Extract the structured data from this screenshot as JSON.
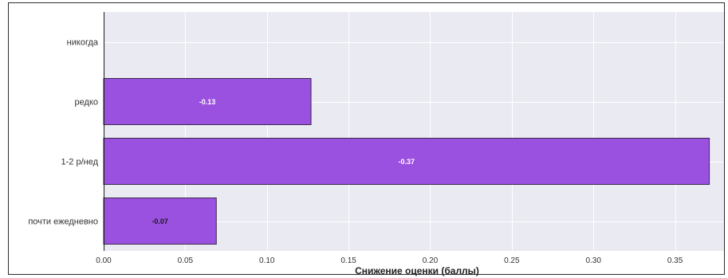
{
  "chart_data": {
    "type": "bar",
    "orientation": "horizontal",
    "categories": [
      "никогда",
      "редко",
      "1-2 р/нед",
      "почти ежедневно"
    ],
    "values": [
      0.0,
      0.127,
      0.371,
      0.069
    ],
    "value_labels": [
      "",
      "-0.13",
      "-0.37",
      "-0.07"
    ],
    "xlabel": "Снижение оценки (баллы)",
    "ylabel": "",
    "xlim": [
      0.0,
      0.38
    ],
    "xticks": [
      0.0,
      0.05,
      0.1,
      0.15,
      0.2,
      0.25,
      0.3,
      0.35
    ],
    "xtick_labels": [
      "0.00",
      "0.05",
      "0.10",
      "0.15",
      "0.20",
      "0.25",
      "0.30",
      "0.35"
    ],
    "grid": true,
    "legend": "none",
    "colors": {
      "bar_fill": "#9b51e0",
      "bar_edge": "#3a2a4a",
      "plot_background": "#eaeaf2",
      "grid": "#ffffff",
      "label_light": "#ffffff",
      "label_dark": "#1a1a1a",
      "frame": "#1a1a1a"
    }
  }
}
